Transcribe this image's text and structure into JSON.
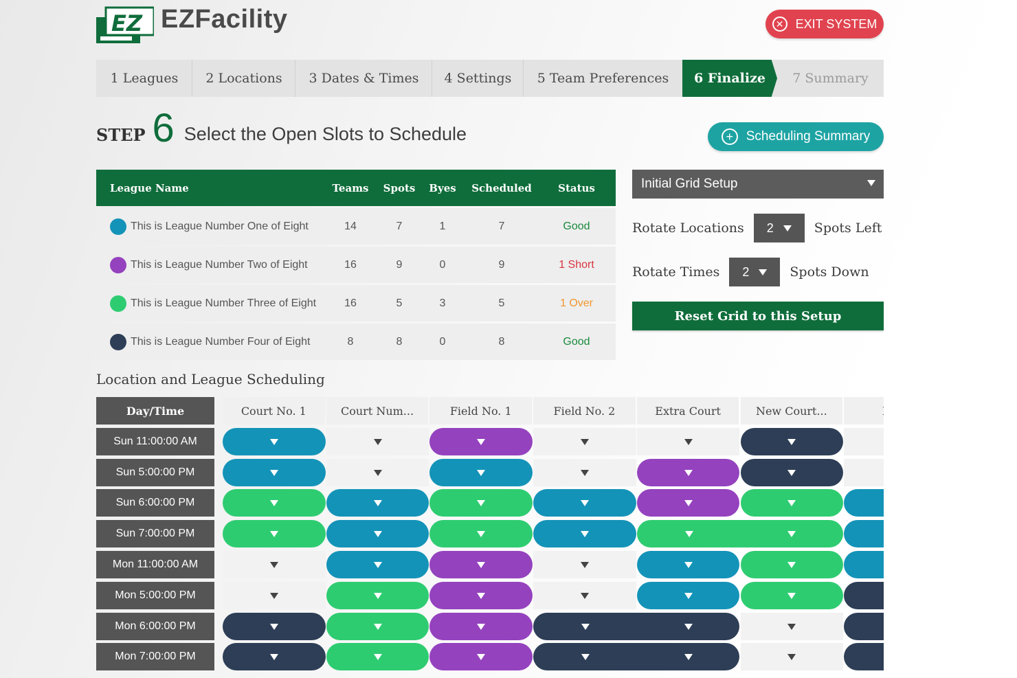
{
  "app": {
    "name": "EZFacility",
    "logo_letters": "EZ"
  },
  "header": {
    "exit_label": "EXIT SYSTEM"
  },
  "tabs": [
    {
      "label": "1 Leagues",
      "state": "done"
    },
    {
      "label": "2 Locations",
      "state": "done"
    },
    {
      "label": "3 Dates & Times",
      "state": "done"
    },
    {
      "label": "4 Settings",
      "state": "done"
    },
    {
      "label": "5 Team Preferences",
      "state": "done"
    },
    {
      "label": "6 Finalize",
      "state": "active"
    },
    {
      "label": "7 Summary",
      "state": "disabled"
    }
  ],
  "step": {
    "word": "STEP",
    "number": "6",
    "title": "Select the Open Slots to Schedule"
  },
  "summary_button": "Scheduling Summary",
  "league_table": {
    "headers": {
      "name": "League Name",
      "teams": "Teams",
      "spots": "Spots",
      "byes": "Byes",
      "scheduled": "Scheduled",
      "status": "Status"
    },
    "rows": [
      {
        "name": "This is League Number One of Eight",
        "color": "#1493b8",
        "teams": "14",
        "spots": "7",
        "byes": "1",
        "scheduled": "7",
        "status": "Good",
        "status_color": "#1a8a3c"
      },
      {
        "name": "This is League Number Two of Eight",
        "color": "#9442be",
        "teams": "16",
        "spots": "9",
        "byes": "0",
        "scheduled": "9",
        "status": "1 Short",
        "status_color": "#d8353f"
      },
      {
        "name": "This is League Number Three of Eight",
        "color": "#2ecc71",
        "teams": "16",
        "spots": "5",
        "byes": "3",
        "scheduled": "5",
        "status": "1 Over",
        "status_color": "#f0962e"
      },
      {
        "name": "This is League Number Four of Eight",
        "color": "#2d3e56",
        "teams": "8",
        "spots": "8",
        "byes": "0",
        "scheduled": "8",
        "status": "Good",
        "status_color": "#1a8a3c"
      }
    ]
  },
  "setup": {
    "select_value": "Initial Grid Setup",
    "rotate_locations": {
      "label": "Rotate Locations",
      "value": "2",
      "suffix": "Spots Left"
    },
    "rotate_times": {
      "label": "Rotate Times",
      "value": "2",
      "suffix": "Spots Down"
    },
    "reset_label": "Reset Grid to this Setup"
  },
  "grid": {
    "section_title": "Location and League Scheduling",
    "corner_label": "Day/Time",
    "columns": [
      "Court No. 1",
      "Court Num...",
      "Field No. 1",
      "Field No. 2",
      "Extra Court",
      "New Court...",
      "New"
    ],
    "league_colors": {
      "1": "#1493b8",
      "2": "#9442be",
      "3": "#2ecc71",
      "4": "#2d3e56"
    },
    "rows": [
      {
        "time": "Sun 11:00:00 AM",
        "cells": [
          1,
          0,
          2,
          0,
          0,
          4,
          0
        ]
      },
      {
        "time": "Sun 5:00:00 PM",
        "cells": [
          1,
          0,
          1,
          0,
          2,
          4,
          0
        ]
      },
      {
        "time": "Sun 6:00:00 PM",
        "cells": [
          3,
          1,
          3,
          1,
          2,
          3,
          1
        ]
      },
      {
        "time": "Sun 7:00:00 PM",
        "cells": [
          3,
          1,
          3,
          1,
          3,
          3,
          1
        ]
      },
      {
        "time": "Mon 11:00:00 AM",
        "cells": [
          0,
          1,
          2,
          0,
          1,
          3,
          1
        ]
      },
      {
        "time": "Mon 5:00:00 PM",
        "cells": [
          0,
          3,
          2,
          0,
          1,
          3,
          4
        ]
      },
      {
        "time": "Mon 6:00:00 PM",
        "cells": [
          4,
          3,
          2,
          4,
          4,
          0,
          4
        ]
      },
      {
        "time": "Mon 7:00:00 PM",
        "cells": [
          4,
          3,
          2,
          4,
          4,
          0,
          4
        ]
      }
    ]
  }
}
